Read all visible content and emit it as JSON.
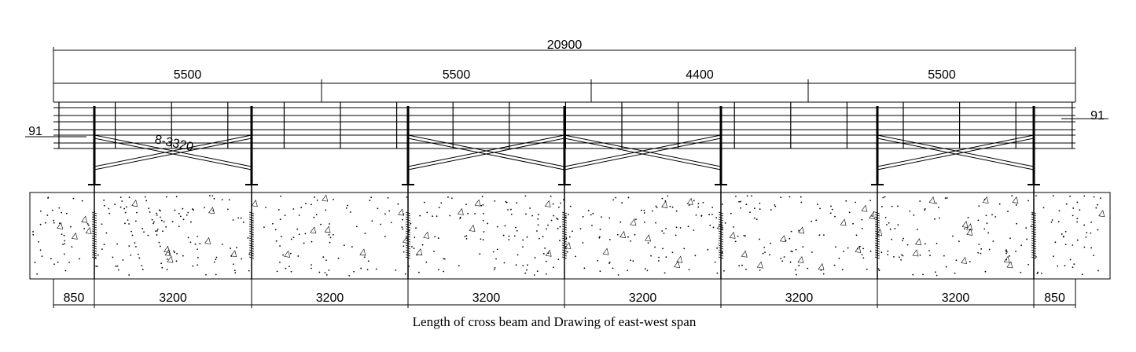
{
  "dimensions": {
    "total": 20900,
    "spans": [
      5500,
      5500,
      4400,
      5500
    ],
    "bottom": [
      850,
      3200,
      3200,
      3200,
      3200,
      3200,
      3200,
      850
    ]
  },
  "labels": {
    "left": 91,
    "right": 91,
    "bracing": "8-3320"
  },
  "caption": "Length of cross beam  and  Drawing of east-west span"
}
